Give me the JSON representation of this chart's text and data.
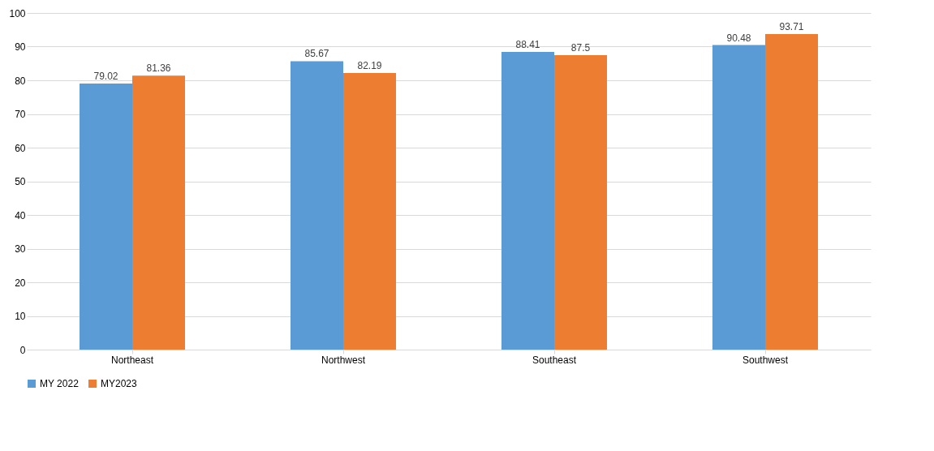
{
  "chart_data": {
    "type": "bar",
    "categories": [
      "Northeast",
      "Northwest",
      "Southeast",
      "Southwest"
    ],
    "series": [
      {
        "name": "MY 2022",
        "color": "#5b9bd5",
        "values": [
          79.02,
          85.67,
          88.41,
          90.48
        ]
      },
      {
        "name": "MY2023",
        "color": "#ed7d31",
        "values": [
          81.36,
          82.19,
          87.5,
          93.71
        ]
      }
    ],
    "ylim": [
      0,
      100
    ],
    "yticks": [
      0,
      10,
      20,
      30,
      40,
      50,
      60,
      70,
      80,
      90,
      100
    ],
    "grid": "y",
    "legend": "bottom",
    "data_labels": true
  }
}
